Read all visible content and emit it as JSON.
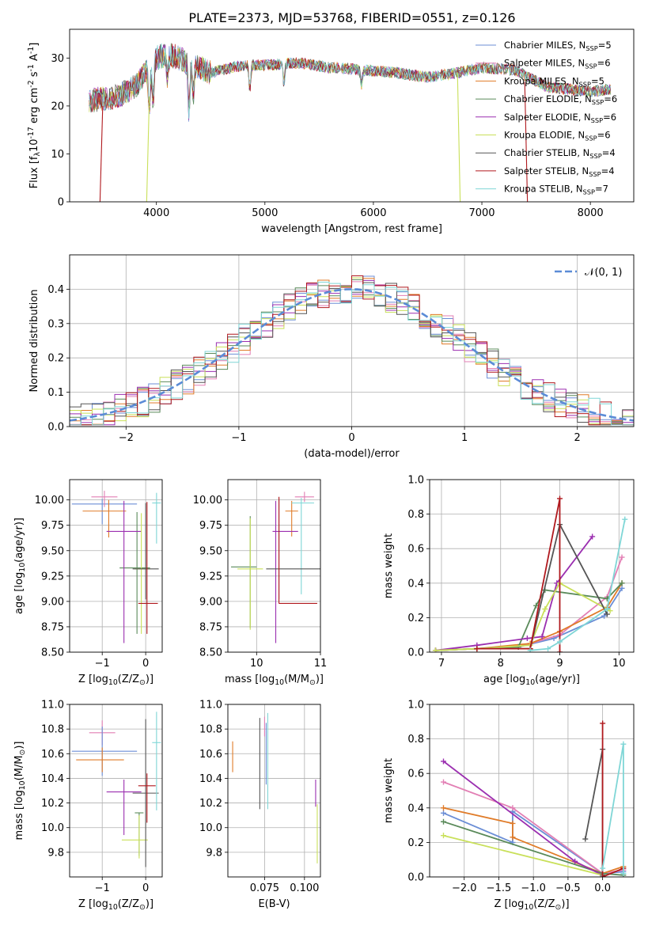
{
  "figure": {
    "suptitle": "PLATE=2373, MJD=53768, FIBERID=0551, z=0.126"
  },
  "colors": {
    "chabrier_miles": "#6b8ed6",
    "salpeter_miles": "#e27fb4",
    "kroupa_miles": "#e07b28",
    "chabrier_elodie": "#5a8a5a",
    "salpeter_elodie": "#9b2fb0",
    "kroupa_elodie": "#c9e05a",
    "chabrier_stelib": "#555555",
    "salpeter_stelib": "#b0191e",
    "kroupa_stelib": "#7fd6d6",
    "normal": "#5b8bd6",
    "grid": "#b0b0b0"
  },
  "chart_data": [
    {
      "id": "spectrum",
      "type": "line",
      "xlabel": "wavelength [Angstrom, rest frame]",
      "ylabel": "Flux [f$_\\lambda$10$^{-17}$ erg cm$^{-2}$ s$^{-1}$ A$^{-1}$]",
      "xlim": [
        3200,
        8400
      ],
      "ylim": [
        0,
        36
      ],
      "xticks": [
        "4000",
        "5000",
        "6000",
        "7000",
        "8000"
      ],
      "yticks": [
        "0",
        "10",
        "20",
        "30"
      ],
      "grid": false,
      "legend_position": "top-right",
      "series": [
        {
          "name": "Chabrier MILES, N$_{SSP}$=5",
          "color_key": "chabrier_miles"
        },
        {
          "name": "Salpeter MILES, N$_{SSP}$=6",
          "color_key": "salpeter_miles"
        },
        {
          "name": "Kroupa MILES, N$_{SSP}$=5",
          "color_key": "kroupa_miles"
        },
        {
          "name": "Chabrier ELODIE, N$_{SSP}$=6",
          "color_key": "chabrier_elodie"
        },
        {
          "name": "Salpeter ELODIE, N$_{SSP}$=6",
          "color_key": "salpeter_elodie"
        },
        {
          "name": "Kroupa ELODIE, N$_{SSP}$=6",
          "color_key": "kroupa_elodie"
        },
        {
          "name": "Chabrier STELIB, N$_{SSP}$=4",
          "color_key": "chabrier_stelib"
        },
        {
          "name": "Salpeter STELIB, N$_{SSP}$=4",
          "color_key": "salpeter_stelib"
        },
        {
          "name": "Kroupa STELIB, N$_{SSP}$=7",
          "color_key": "kroupa_stelib"
        }
      ],
      "continuum_knots": {
        "x": [
          3380,
          3500,
          3650,
          3800,
          3900,
          4000,
          4100,
          4300,
          4500,
          4800,
          5000,
          5300,
          5600,
          5900,
          6200,
          6500,
          6800,
          7000,
          7300,
          7600,
          8000,
          8200
        ],
        "y": [
          21,
          21.5,
          22,
          24,
          27,
          30,
          31,
          29,
          27,
          28.5,
          28.5,
          29,
          28,
          27.5,
          27,
          26,
          27,
          28,
          27.5,
          24,
          23,
          23.5
        ]
      },
      "absorption_lines": [
        {
          "x": 3934,
          "depth": 9
        },
        {
          "x": 3969,
          "depth": 8
        },
        {
          "x": 4102,
          "depth": 5
        },
        {
          "x": 4300,
          "depth": 10
        },
        {
          "x": 4340,
          "depth": 6
        },
        {
          "x": 4861,
          "depth": 5
        },
        {
          "x": 5175,
          "depth": 4
        },
        {
          "x": 5890,
          "depth": 3
        }
      ],
      "model_cutoffs": [
        {
          "color_key": "salpeter_stelib",
          "x_from": 3480,
          "y_from": 20
        },
        {
          "color_key": "kroupa_elodie",
          "x_from": 3910,
          "y_from": 22
        },
        {
          "color_key": "kroupa_elodie",
          "x_to": 6800,
          "y_to": 27
        },
        {
          "color_key": "salpeter_stelib",
          "x_to": 7420,
          "y_to": 25
        }
      ]
    },
    {
      "id": "residuals",
      "type": "bar",
      "xlabel": "(data-model)/error",
      "ylabel": "Normed distribution",
      "xlim": [
        -2.5,
        2.5
      ],
      "ylim": [
        0,
        0.5
      ],
      "xticks": [
        "−2",
        "−1",
        "0",
        "1",
        "2"
      ],
      "yticks": [
        "0.0",
        "0.1",
        "0.2",
        "0.3",
        "0.4"
      ],
      "grid": true,
      "legend_position": "top-right",
      "normal_label": "𝒩(0, 1)",
      "bin_width": 0.1
    },
    {
      "id": "age_vs_Z",
      "type": "scatter",
      "xlabel": "Z [log$_{10}$(Z/Z$_\\odot$)]",
      "ylabel": "age  [log$_{10}$(age/yr)]",
      "xlim": [
        -1.75,
        0.38
      ],
      "ylim": [
        8.5,
        10.2
      ],
      "xticks": [
        "−1",
        "0"
      ],
      "yticks": [
        "8.50",
        "8.75",
        "9.00",
        "9.25",
        "9.50",
        "9.75",
        "10.00"
      ],
      "grid": true,
      "points": [
        {
          "color_key": "chabrier_miles",
          "x": -1.0,
          "y": 9.96,
          "xerr": [
            0.7,
            0.8
          ],
          "yerr": [
            0.2,
            0.05
          ]
        },
        {
          "color_key": "salpeter_miles",
          "x": -0.95,
          "y": 10.03,
          "xerr": [
            0.3,
            0.3
          ],
          "yerr": [
            0.1,
            0.06
          ]
        },
        {
          "color_key": "kroupa_miles",
          "x": -0.85,
          "y": 9.89,
          "xerr": [
            0.6,
            0.4
          ],
          "yerr": [
            0.26,
            0.11
          ]
        },
        {
          "color_key": "chabrier_elodie",
          "x": -0.2,
          "y": 9.33,
          "xerr": [
            0.4,
            0.3
          ],
          "yerr": [
            0.65,
            0.55
          ]
        },
        {
          "color_key": "salpeter_elodie",
          "x": -0.5,
          "y": 9.69,
          "xerr": [
            0.4,
            0.4
          ],
          "yerr": [
            1.1,
            0.3
          ]
        },
        {
          "color_key": "kroupa_elodie",
          "x": -0.1,
          "y": 9.32,
          "xerr": [
            0.15,
            0.2
          ],
          "yerr": [
            0.64,
            0.55
          ]
        },
        {
          "color_key": "chabrier_stelib",
          "x": 0.0,
          "y": 9.32,
          "xerr": [
            0.3,
            0.3
          ],
          "yerr": [
            0.3,
            0.65
          ]
        },
        {
          "color_key": "salpeter_stelib",
          "x": 0.03,
          "y": 8.98,
          "xerr": [
            0.2,
            0.25
          ],
          "yerr": [
            0.3,
            1.0
          ]
        },
        {
          "color_key": "kroupa_stelib",
          "x": 0.25,
          "y": 9.97,
          "xerr": [
            0.1,
            0.1
          ],
          "yerr": [
            0.4,
            0.1
          ]
        }
      ]
    },
    {
      "id": "age_vs_mass",
      "type": "scatter",
      "xlabel": "mass [log$_{10}$(M/M$_\\odot$)]",
      "ylabel": "",
      "xlim": [
        9.55,
        11.0
      ],
      "ylim": [
        8.5,
        10.2
      ],
      "xticks": [
        "10",
        "11"
      ],
      "yticks": [
        "8.50",
        "8.75",
        "9.00",
        "9.25",
        "9.50",
        "9.75",
        "10.00"
      ],
      "grid": true,
      "points": [
        {
          "color_key": "salpeter_miles",
          "x": 10.75,
          "y": 10.03,
          "xerr": [
            0.15,
            0.15
          ],
          "yerr": [
            0.05,
            0.05
          ]
        },
        {
          "color_key": "kroupa_miles",
          "x": 10.55,
          "y": 9.89,
          "xerr": [
            0.1,
            0.1
          ],
          "yerr": [
            0.25,
            0.1
          ]
        },
        {
          "color_key": "kroupa_stelib",
          "x": 10.7,
          "y": 9.97,
          "xerr": [
            0.15,
            0.2
          ],
          "yerr": [
            0.9,
            0.05
          ]
        },
        {
          "color_key": "salpeter_elodie",
          "x": 10.3,
          "y": 9.69,
          "xerr": [
            0.05,
            0.35
          ],
          "yerr": [
            1.1,
            0.3
          ]
        },
        {
          "color_key": "chabrier_elodie",
          "x": 9.9,
          "y": 9.34,
          "xerr": [
            0.3,
            0.1
          ],
          "yerr": [
            0.6,
            0.5
          ]
        },
        {
          "color_key": "kroupa_elodie",
          "x": 9.9,
          "y": 9.32,
          "xerr": [
            0.2,
            0.2
          ],
          "yerr": [
            0.6,
            0.5
          ]
        },
        {
          "color_key": "chabrier_stelib",
          "x": 10.35,
          "y": 9.32,
          "xerr": [
            0.2,
            0.7
          ],
          "yerr": [
            0.3,
            0.7
          ]
        },
        {
          "color_key": "salpeter_stelib",
          "x": 10.35,
          "y": 8.98,
          "xerr": [
            0.0,
            0.6
          ],
          "yerr": [
            0.0,
            1.05
          ]
        }
      ]
    },
    {
      "id": "weight_vs_age",
      "type": "line",
      "xlabel": "age  [log$_{10}$(age/yr)]",
      "ylabel": "mass weight",
      "xlim": [
        6.8,
        10.25
      ],
      "ylim": [
        0,
        1.0
      ],
      "xticks": [
        "7",
        "8",
        "9",
        "10"
      ],
      "yticks": [
        "0.0",
        "0.2",
        "0.4",
        "0.6",
        "0.8",
        "1.0"
      ],
      "grid": true,
      "series": [
        {
          "color_key": "chabrier_miles",
          "x": [
            6.9,
            7.6,
            8.3,
            8.9,
            9.75,
            10.05
          ],
          "y": [
            0.01,
            0.02,
            0.03,
            0.08,
            0.21,
            0.37
          ]
        },
        {
          "color_key": "salpeter_miles",
          "x": [
            6.9,
            7.6,
            8.3,
            9.0,
            9.8,
            10.05
          ],
          "y": [
            0.01,
            0.02,
            0.03,
            0.1,
            0.32,
            0.55
          ]
        },
        {
          "color_key": "kroupa_miles",
          "x": [
            6.9,
            7.6,
            8.5,
            9.0,
            9.8,
            10.05
          ],
          "y": [
            0.01,
            0.02,
            0.05,
            0.12,
            0.26,
            0.4
          ]
        },
        {
          "color_key": "chabrier_elodie",
          "x": [
            6.9,
            7.6,
            8.3,
            8.6,
            8.75,
            9.8,
            10.05
          ],
          "y": [
            0.01,
            0.02,
            0.03,
            0.27,
            0.36,
            0.31,
            0.4
          ]
        },
        {
          "color_key": "salpeter_elodie",
          "x": [
            6.9,
            7.6,
            8.45,
            8.7,
            8.95,
            9.55
          ],
          "y": [
            0.01,
            0.04,
            0.08,
            0.09,
            0.4,
            0.67
          ]
        },
        {
          "color_key": "kroupa_elodie",
          "x": [
            6.9,
            7.6,
            8.5,
            8.75,
            9.0,
            9.85
          ],
          "y": [
            0.01,
            0.02,
            0.04,
            0.25,
            0.4,
            0.24
          ]
        },
        {
          "color_key": "chabrier_stelib",
          "x": [
            7.6,
            8.5,
            9.0,
            9.8
          ],
          "y": [
            0.02,
            0.02,
            0.74,
            0.22
          ]
        },
        {
          "color_key": "salpeter_stelib",
          "x": [
            7.6,
            8.5,
            9.0,
            9.0
          ],
          "y": [
            0.02,
            0.02,
            0.89,
            0.0
          ]
        },
        {
          "color_key": "kroupa_stelib",
          "x": [
            8.5,
            8.8,
            9.0,
            9.8,
            10.1
          ],
          "y": [
            0.01,
            0.02,
            0.06,
            0.25,
            0.77
          ]
        }
      ]
    },
    {
      "id": "mass_vs_Z",
      "type": "scatter",
      "xlabel": "Z [log$_{10}$(Z/Z$_\\odot$)]",
      "ylabel": "mass [log$_{10}$(M/M$_\\odot$)]",
      "xlim": [
        -1.75,
        0.38
      ],
      "ylim": [
        9.6,
        11.0
      ],
      "xticks": [
        "−1",
        "0"
      ],
      "yticks": [
        "9.8",
        "10.0",
        "10.2",
        "10.4",
        "10.6",
        "10.8",
        "11.0"
      ],
      "grid": true,
      "points": [
        {
          "color_key": "salpeter_miles",
          "x": -1.0,
          "y": 10.77,
          "xerr": [
            0.3,
            0.3
          ],
          "yerr": [
            0.1,
            0.1
          ]
        },
        {
          "color_key": "chabrier_miles",
          "x": -1.0,
          "y": 10.62,
          "xerr": [
            0.7,
            0.8
          ],
          "yerr": [
            0.2,
            0.2
          ]
        },
        {
          "color_key": "kroupa_miles",
          "x": -1.0,
          "y": 10.55,
          "xerr": [
            0.6,
            0.5
          ],
          "yerr": [
            0.1,
            0.1
          ]
        },
        {
          "color_key": "salpeter_elodie",
          "x": -0.5,
          "y": 10.29,
          "xerr": [
            0.4,
            0.4
          ],
          "yerr": [
            0.35,
            0.1
          ]
        },
        {
          "color_key": "chabrier_elodie",
          "x": -0.15,
          "y": 10.12,
          "xerr": [
            0.1,
            0.1
          ],
          "yerr": [
            0.35,
            0.0
          ]
        },
        {
          "color_key": "kroupa_elodie",
          "x": -0.15,
          "y": 9.9,
          "xerr": [
            0.4,
            0.2
          ],
          "yerr": [
            0.15,
            0.2
          ]
        },
        {
          "color_key": "chabrier_stelib",
          "x": 0.0,
          "y": 10.28,
          "xerr": [
            0.3,
            0.3
          ],
          "yerr": [
            0.6,
            0.6
          ]
        },
        {
          "color_key": "salpeter_stelib",
          "x": 0.03,
          "y": 10.34,
          "xerr": [
            0.2,
            0.2
          ],
          "yerr": [
            0.3,
            0.1
          ]
        },
        {
          "color_key": "kroupa_stelib",
          "x": 0.25,
          "y": 10.69,
          "xerr": [
            0.1,
            0.1
          ],
          "yerr": [
            0.55,
            0.25
          ]
        }
      ]
    },
    {
      "id": "mass_vs_EBV",
      "type": "scatter",
      "xlabel": "E(B-V)",
      "ylabel": "",
      "xlim": [
        0.052,
        0.11
      ],
      "ylim": [
        9.6,
        11.0
      ],
      "xticks": [
        "0.075",
        "0.100"
      ],
      "yticks": [
        "9.8",
        "10.0",
        "10.2",
        "10.4",
        "10.6",
        "10.8",
        "11.0"
      ],
      "grid": true,
      "points": [
        {
          "color_key": "kroupa_miles",
          "x": 0.055,
          "y": 10.55,
          "yerr": [
            0.1,
            0.15
          ]
        },
        {
          "color_key": "chabrier_stelib",
          "x": 0.072,
          "y": 10.52,
          "yerr": [
            0.37,
            0.37
          ]
        },
        {
          "color_key": "salpeter_miles",
          "x": 0.075,
          "y": 10.82,
          "yerr": [
            0.08,
            0.08
          ]
        },
        {
          "color_key": "chabrier_miles",
          "x": 0.076,
          "y": 10.65,
          "yerr": [
            0.3,
            0.2
          ]
        },
        {
          "color_key": "kroupa_stelib",
          "x": 0.077,
          "y": 10.55,
          "yerr": [
            0.4,
            0.38
          ]
        },
        {
          "color_key": "salpeter_elodie",
          "x": 0.107,
          "y": 10.27,
          "yerr": [
            0.1,
            0.12
          ]
        },
        {
          "color_key": "kroupa_elodie",
          "x": 0.108,
          "y": 9.93,
          "yerr": [
            0.22,
            0.26
          ]
        }
      ]
    },
    {
      "id": "weight_vs_Z",
      "type": "line",
      "xlabel": "Z [log$_{10}$(Z/Z$_\\odot$)]",
      "ylabel": "mass weight",
      "xlim": [
        -2.5,
        0.45
      ],
      "ylim": [
        0,
        1.0
      ],
      "xticks": [
        "−2.0",
        "−1.5",
        "−1.0",
        "−0.5",
        "0.0"
      ],
      "yticks": [
        "0.0",
        "0.2",
        "0.4",
        "0.6",
        "0.8",
        "1.0"
      ],
      "grid": true,
      "series": [
        {
          "color_key": "chabrier_miles",
          "x": [
            -2.3,
            -1.3,
            -1.3,
            0.0,
            0.3
          ],
          "y": [
            0.37,
            0.2,
            0.38,
            0.02,
            0.03
          ]
        },
        {
          "color_key": "salpeter_miles",
          "x": [
            -2.3,
            -1.3,
            0.0,
            0.3
          ],
          "y": [
            0.55,
            0.4,
            0.02,
            0.04
          ]
        },
        {
          "color_key": "kroupa_miles",
          "x": [
            -2.3,
            -1.3,
            -1.3,
            0.0,
            0.3
          ],
          "y": [
            0.4,
            0.31,
            0.23,
            0.02,
            0.06
          ]
        },
        {
          "color_key": "chabrier_elodie",
          "x": [
            -2.3,
            0.0,
            0.3
          ],
          "y": [
            0.32,
            0.02,
            0.01
          ]
        },
        {
          "color_key": "salpeter_elodie",
          "x": [
            -2.3,
            -0.4,
            0.0
          ],
          "y": [
            0.67,
            0.09,
            0.01
          ]
        },
        {
          "color_key": "kroupa_elodie",
          "x": [
            -2.3,
            0.0
          ],
          "y": [
            0.24,
            0.01
          ]
        },
        {
          "color_key": "chabrier_stelib",
          "x": [
            -0.25,
            0.0,
            0.0
          ],
          "y": [
            0.22,
            0.74,
            0.01
          ]
        },
        {
          "color_key": "salpeter_stelib",
          "x": [
            0.0,
            0.0,
            0.3
          ],
          "y": [
            0.89,
            0.0,
            0.05
          ]
        },
        {
          "color_key": "kroupa_stelib",
          "x": [
            0.0,
            0.3,
            0.3
          ],
          "y": [
            0.05,
            0.77,
            0.02
          ]
        }
      ]
    }
  ]
}
